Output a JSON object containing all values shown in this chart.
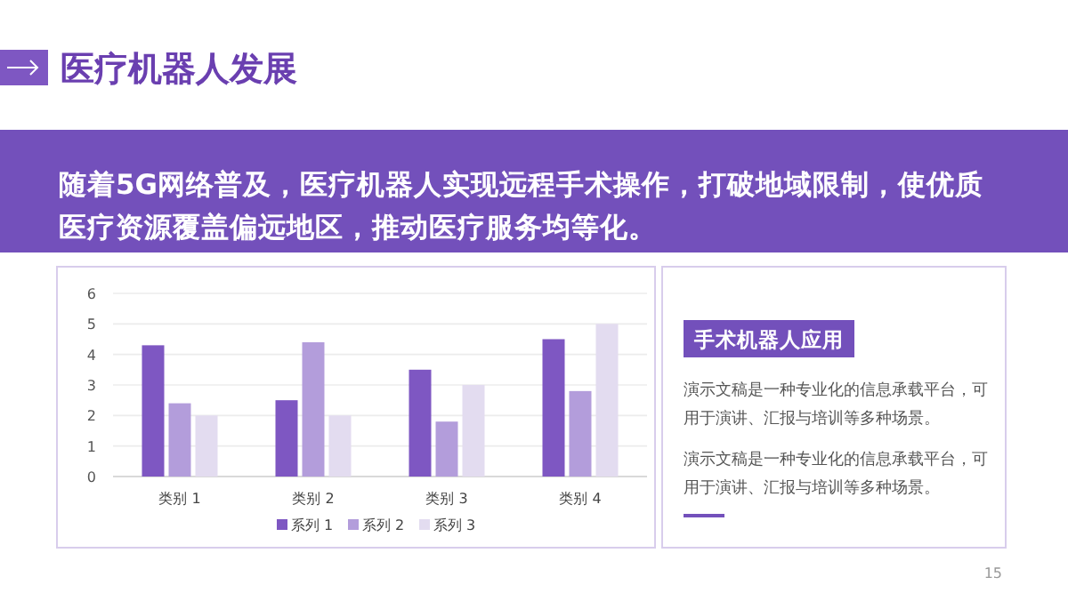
{
  "chart_data": [
    {
      "type": "bar",
      "title": "医疗机器人发展",
      "subtitle": "随着5G网络普及，医疗机器人实现远程手术操作，打破地域限制，使优质医疗资源覆盖偏远地区，推动医疗服务均等化。",
      "categories": [
        "类别 1",
        "类别 2",
        "类别 3",
        "类别 4"
      ],
      "series": [
        {
          "name": "系列 1",
          "color": "#7e57c2",
          "values": [
            4.3,
            2.5,
            3.5,
            4.5
          ]
        },
        {
          "name": "系列 2",
          "color": "#b39ddb",
          "values": [
            2.4,
            4.4,
            1.8,
            2.8
          ]
        },
        {
          "name": "系列 3",
          "color": "#e3dcf0",
          "values": [
            2,
            2,
            3,
            5
          ]
        }
      ],
      "ylim": [
        0,
        6
      ],
      "yticks": [
        0,
        1,
        2,
        3,
        4,
        5,
        6
      ],
      "grid": "y",
      "legend": "bottom",
      "annotations": [
        "15"
      ]
    },
    {
      "type": "other",
      "title": "手术机器人应用",
      "annotations": [
        "演示文稿是一种专业化的信息承载平台，可用于演讲、汇报与培训等多种场景。",
        "演示文稿是一种专业化的信息承载平台，可用于演讲、汇报与培训等多种场景。"
      ]
    }
  ]
}
